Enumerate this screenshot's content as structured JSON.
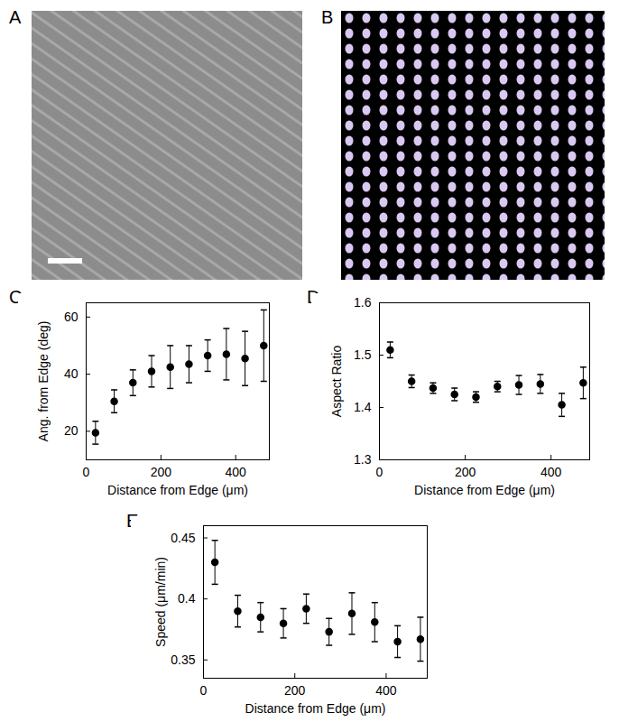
{
  "images": [
    {
      "label": "A"
    },
    {
      "label": "B"
    }
  ],
  "chart_data": [
    {
      "label": "C",
      "type": "scatter",
      "marker": "circle",
      "color": "#000000",
      "xlabel": "Distance from Edge (μm)",
      "ylabel": "Ang. from Edge (deg)",
      "x": [
        25,
        75,
        125,
        175,
        225,
        275,
        325,
        375,
        425,
        475
      ],
      "values": [
        19.5,
        30.5,
        37,
        41,
        42.5,
        43.5,
        46.5,
        47,
        45.5,
        50
      ],
      "errors": [
        4,
        4,
        4.5,
        5.5,
        7.5,
        6.5,
        5.5,
        9,
        9.5,
        12.5
      ],
      "xlim": [
        0,
        490
      ],
      "xticks": [
        0,
        200,
        400
      ],
      "ylim": [
        10,
        65
      ],
      "yticks": [
        20,
        40,
        60
      ]
    },
    {
      "label": "D",
      "type": "scatter",
      "marker": "circle",
      "color": "#000000",
      "xlabel": "Distance from Edge (μm)",
      "ylabel": "Aspect Ratio",
      "x": [
        25,
        75,
        125,
        175,
        225,
        275,
        325,
        375,
        425,
        475
      ],
      "values": [
        1.51,
        1.45,
        1.437,
        1.425,
        1.42,
        1.44,
        1.443,
        1.445,
        1.405,
        1.447
      ],
      "errors": [
        0.015,
        0.012,
        0.01,
        0.012,
        0.01,
        0.01,
        0.018,
        0.018,
        0.022,
        0.03
      ],
      "xlim": [
        0,
        490
      ],
      "xticks": [
        0,
        200,
        400
      ],
      "ylim": [
        1.3,
        1.6
      ],
      "yticks": [
        1.3,
        1.4,
        1.5,
        1.6
      ]
    },
    {
      "label": "E",
      "type": "scatter",
      "marker": "circle",
      "color": "#000000",
      "xlabel": "Distance from Edge (μm)",
      "ylabel": "Speed (μm/min)",
      "x": [
        25,
        75,
        125,
        175,
        225,
        275,
        325,
        375,
        425,
        475
      ],
      "values": [
        0.43,
        0.39,
        0.385,
        0.38,
        0.392,
        0.373,
        0.388,
        0.381,
        0.365,
        0.367
      ],
      "errors": [
        0.018,
        0.013,
        0.012,
        0.012,
        0.012,
        0.011,
        0.017,
        0.016,
        0.013,
        0.018
      ],
      "xlim": [
        0,
        490
      ],
      "xticks": [
        0,
        200,
        400
      ],
      "ylim": [
        0.335,
        0.46
      ],
      "yticks": [
        0.35,
        0.4,
        0.45
      ]
    }
  ]
}
